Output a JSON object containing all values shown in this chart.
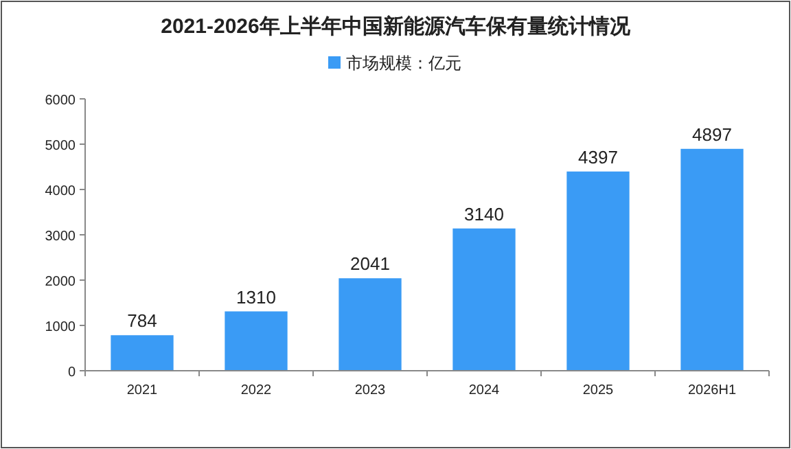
{
  "chart_data": {
    "type": "bar",
    "title": "2021-2026年上半年中国新能源汽车保有量统计情况",
    "categories": [
      "2021",
      "2022",
      "2023",
      "2024",
      "2025",
      "2026H1"
    ],
    "series": [
      {
        "name": "市场规模：亿元",
        "color": "#3a9bf5",
        "values": [
          784,
          1310,
          2041,
          3140,
          4397,
          4897
        ]
      }
    ],
    "ylim": [
      0,
      6000
    ],
    "yticks": [
      0,
      1000,
      2000,
      3000,
      4000,
      5000,
      6000
    ],
    "data_labels": true,
    "legend": "top",
    "grid": false
  }
}
